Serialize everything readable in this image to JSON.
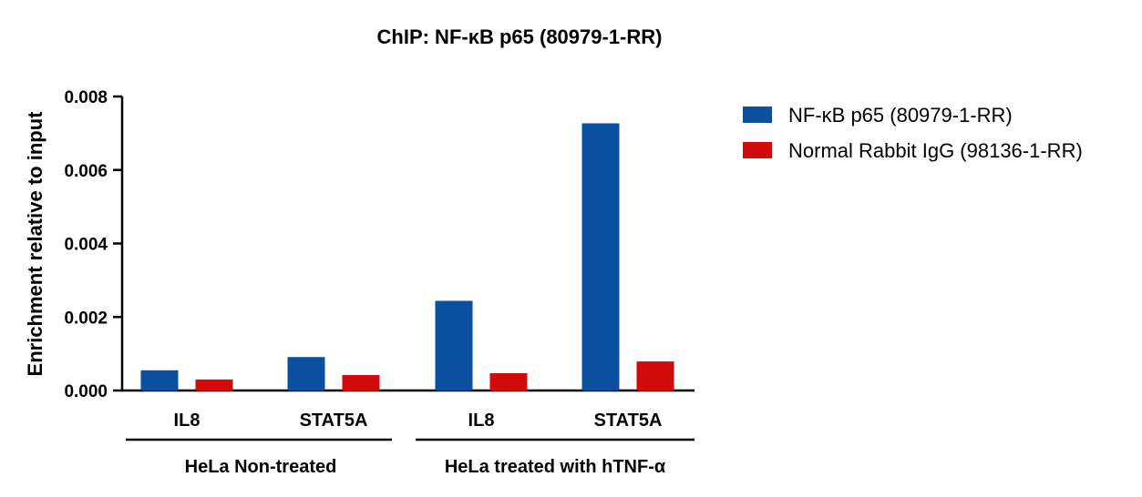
{
  "chart_data": {
    "type": "bar",
    "title": "ChIP: NF-κB p65 (80979-1-RR)",
    "ylabel": "Enrichment relative to input",
    "xlabel": "",
    "ylim": [
      0,
      0.008
    ],
    "yticks": [
      "0.000",
      "0.002",
      "0.004",
      "0.006",
      "0.008"
    ],
    "categories": [
      "IL8",
      "STAT5A",
      "IL8",
      "STAT5A"
    ],
    "groups": [
      {
        "label": "HeLa Non-treated",
        "categories": [
          0,
          1
        ]
      },
      {
        "label": "HeLa treated with hTNF-α",
        "categories": [
          2,
          3
        ]
      }
    ],
    "series": [
      {
        "name": "NF-κB p65 (80979-1-RR)",
        "color": "#0a4fa0",
        "values": [
          0.00055,
          0.00091,
          0.00244,
          0.00727
        ]
      },
      {
        "name": "Normal Rabbit IgG (98136-1-RR)",
        "color": "#d10a0a",
        "values": [
          0.0003,
          0.00042,
          0.00047,
          0.00079
        ]
      }
    ],
    "legend_position": "right",
    "grid": false
  }
}
